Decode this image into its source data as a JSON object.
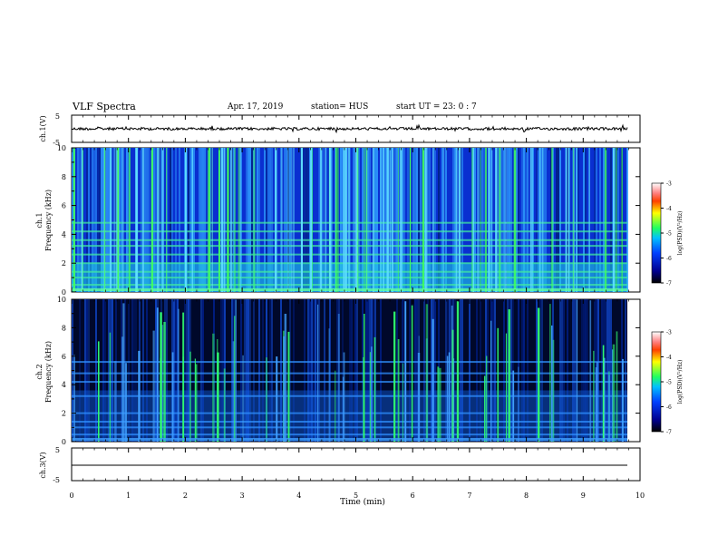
{
  "header": {
    "title": "VLF Spectra",
    "date": "Apr. 17, 2019",
    "station": "station= HUS",
    "start": "start  UT  =   23: 0   : 7"
  },
  "chart_data": [
    {
      "type": "line",
      "panel": "ch1-waveform",
      "ylabel": "ch.1(V)",
      "yticks": [
        "5",
        "-5"
      ],
      "ylim": [
        -5,
        5
      ],
      "x_range_min": [
        0,
        9.8
      ],
      "series": [
        {
          "values_description_level": 0.0
        }
      ]
    },
    {
      "type": "heatmap",
      "panel": "ch1-spectrogram",
      "ylabel": "ch.1\nFrequency  (kHz)",
      "ylim": [
        0,
        10
      ],
      "yticks": [
        "0",
        "2",
        "4",
        "6",
        "8",
        "10"
      ],
      "colorbar": {
        "label": "log(PSD)(V²/Hz)",
        "range": [
          -7,
          -3
        ],
        "ticks": [
          "-3",
          "-4",
          "-5",
          "-6",
          "-7"
        ]
      },
      "bands_khz": [
        0.5,
        1.0,
        1.4,
        2.0,
        2.6,
        3.2,
        3.6,
        4.2,
        4.8
      ]
    },
    {
      "type": "heatmap",
      "panel": "ch2-spectrogram",
      "ylabel": "ch.2\nFrequency  (kHz)",
      "ylim": [
        0,
        10
      ],
      "yticks": [
        "0",
        "2",
        "4",
        "6",
        "8",
        "10"
      ],
      "colorbar": {
        "label": "log(PSD)(V²/Hz)",
        "range": [
          -7,
          -3
        ],
        "ticks": [
          "-3",
          "-4",
          "-5",
          "-6",
          "-7"
        ]
      },
      "bands_khz": [
        0.5,
        1.0,
        1.4,
        2.0,
        3.2,
        4.2,
        4.8,
        5.6
      ]
    },
    {
      "type": "line",
      "panel": "ch3-waveform",
      "ylabel": "ch.3(V)",
      "yticks": [
        "5",
        "-5"
      ],
      "ylim": [
        -5,
        5
      ],
      "series": [
        {
          "constant_value": 0
        }
      ]
    }
  ],
  "xaxis": {
    "label": "Time  (min)",
    "ticks": [
      "0",
      "1",
      "2",
      "3",
      "4",
      "5",
      "6",
      "7",
      "8",
      "9",
      "10"
    ],
    "range": [
      0,
      10
    ]
  },
  "colors": {
    "ch1_background": "#1050e0",
    "ch2_background": "#000030",
    "band_green": "#40ff60"
  }
}
